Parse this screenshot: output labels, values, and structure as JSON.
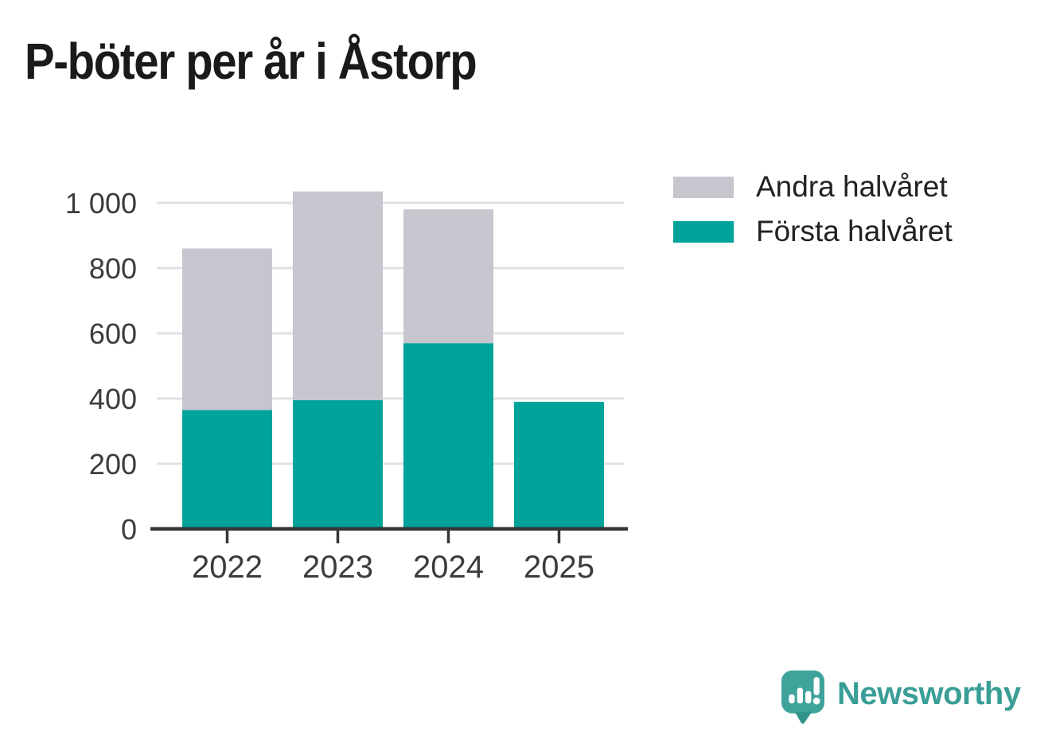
{
  "chart_data": {
    "type": "bar",
    "stacked": true,
    "title": "P-böter per år i Åstorp",
    "categories": [
      "2022",
      "2023",
      "2024",
      "2025"
    ],
    "series": [
      {
        "name": "Första halvåret",
        "color": "#00a39a",
        "values": [
          365,
          395,
          570,
          390
        ]
      },
      {
        "name": "Andra halvåret",
        "color": "#c7c5ce",
        "values": [
          495,
          640,
          410,
          0
        ]
      }
    ],
    "totals": [
      860,
      1035,
      980,
      390
    ],
    "xlabel": "",
    "ylabel": "",
    "ylim": [
      0,
      1000
    ],
    "yticks": [
      0,
      200,
      400,
      600,
      800,
      1000
    ],
    "ytick_labels": [
      "0",
      "200",
      "400",
      "600",
      "800",
      "1 000"
    ],
    "grid": "horizontal",
    "gridline_color": "#e2e0e5",
    "axis_color": "#363636",
    "tick_label_color": "#3c3c3c",
    "legend_position": "right-top"
  },
  "legend": {
    "items": [
      {
        "label": "Andra halvåret",
        "color": "#c7c5ce"
      },
      {
        "label": "Första halvåret",
        "color": "#00a39a"
      }
    ]
  },
  "branding": {
    "logo_text": "Newsworthy",
    "logo_color": "#3a9e97",
    "logo_icon": "newsworthy-speech-bubble-bar-chart-icon",
    "logo_icon_color": "#3fa39b",
    "logo_icon_tail_color": "#31938c"
  }
}
